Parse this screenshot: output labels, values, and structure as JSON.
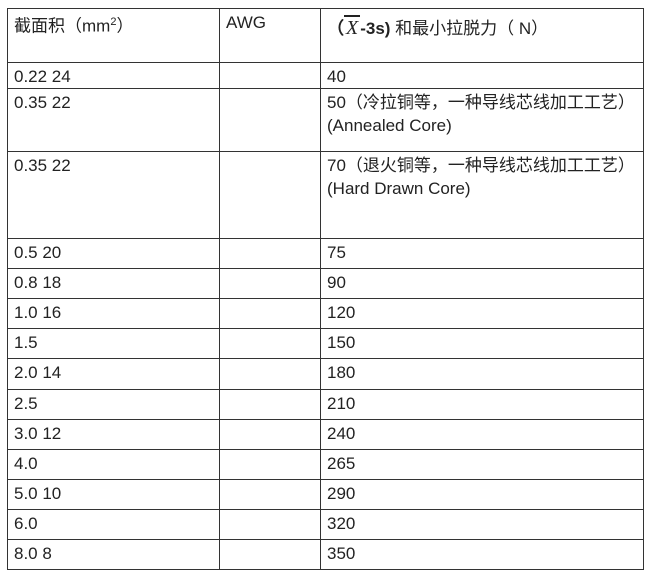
{
  "table": {
    "headers": {
      "area_label": "截面积（",
      "area_unit": "mm",
      "area_exp": "2",
      "area_close": "）",
      "awg": "AWG",
      "force_open": "（",
      "force_symbol": "X",
      "force_suffix": "-3s)",
      "force_label": " 和最小拉脱力（  N）"
    },
    "rows": [
      {
        "area": "0.22 24",
        "awg": "",
        "force": "40"
      },
      {
        "area": "0.35 22",
        "awg": "",
        "force": "50（冷拉铜等，一种导线芯线加工工艺） (Annealed Core)"
      },
      {
        "area": "0.35 22",
        "awg": "",
        "force": "70（退火铜等，一种导线芯线加工工艺）  (Hard Drawn Core)"
      },
      {
        "area": "0.5 20",
        "awg": "",
        "force": "75"
      },
      {
        "area": "0.8 18",
        "awg": "",
        "force": "90"
      },
      {
        "area": "1.0 16",
        "awg": "",
        "force": "120"
      },
      {
        "area": "1.5",
        "awg": "",
        "force": "150"
      },
      {
        "area": "2.0 14",
        "awg": "",
        "force": "180"
      },
      {
        "area": "2.5",
        "awg": "",
        "force": "210"
      },
      {
        "area": "3.0 12",
        "awg": "",
        "force": "240"
      },
      {
        "area": "4.0",
        "awg": "",
        "force": "265"
      },
      {
        "area": "5.0 10",
        "awg": "",
        "force": "290"
      },
      {
        "area": "6.0",
        "awg": "",
        "force": "320"
      },
      {
        "area": "8.0 8",
        "awg": "",
        "force": "350"
      }
    ]
  }
}
